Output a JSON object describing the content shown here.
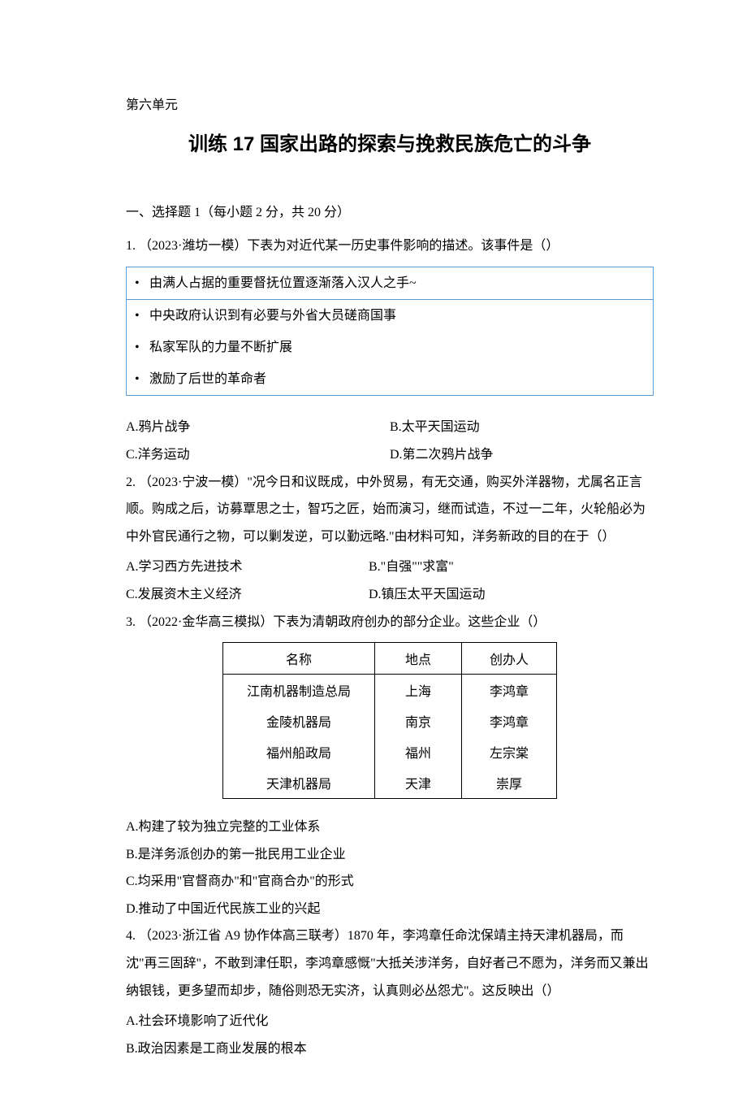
{
  "unit_label": "第六单元",
  "main_title": "训练 17 国家出路的探索与挽救民族危亡的斗争",
  "section1_title": "一、选择题 1（每小题 2 分，共 20 分）",
  "q1": {
    "num": "1.",
    "text": "（2023·潍坊一模）下表为对近代某一历史事件影响的描述。该事件是（）",
    "box_items": [
      "由满人占据的重要督抚位置逐渐落入汉人之手~",
      "中央政府认识到有必要与外省大员磋商国事",
      "私家军队的力量不断扩展",
      "激励了后世的革命者"
    ],
    "optA": "A.鸦片战争",
    "optB": "B.太平天国运动",
    "optC": "C.洋务运动",
    "optD": "D.第二次鸦片战争"
  },
  "q2": {
    "num": "2.",
    "text": "（2023·宁波一模）\"况今日和议既成，中外贸易，有无交通，购买外洋器物，尤属名正言顺。购成之后，访募覃思之士，智巧之匠，始而演习，继而试造，不过一二年，火轮船必为中外官民通行之物，可以剿发逆，可以勤远略.\"由材料可知，洋务新政的目的在于（）",
    "optA": "A.学习西方先进技术",
    "optB": "B.\"自强\"\"求富\"",
    "optC": "C.发展资木主义经济",
    "optD": "D.镇压太平天国运动"
  },
  "q3": {
    "num": "3.",
    "text": "（2022·金华高三模拟）下表为清朝政府创办的部分企业。这些企业（）",
    "table": {
      "headers": [
        "名称",
        "地点",
        "创办人"
      ],
      "rows": [
        [
          "江南机器制造总局",
          "上海",
          "李鸿章"
        ],
        [
          "金陵机器局",
          "南京",
          "李鸿章"
        ],
        [
          "福州船政局",
          "福州",
          "左宗棠"
        ],
        [
          "天津机器局",
          "天津",
          "崇厚"
        ]
      ]
    },
    "optA": "A.构建了较为独立完整的工业体系",
    "optB": "B.是洋务派创办的第一批民用工业企业",
    "optC": "C.均采用\"官督商办\"和\"官商合办\"的形式",
    "optD": "D.推动了中国近代民族工业的兴起"
  },
  "q4": {
    "num": "4.",
    "text": "（2023·浙江省 A9 协作体高三联考）1870 年，李鸿章任命沈保靖主持天津机器局，而沈\"再三固辞\"，不敢到津任职，李鸿章感慨\"大抵关涉洋务，自好者己不愿为，洋务而又兼出纳银钱，更多望而却步，随俗则恐无实济，认真则必丛怨尤\"。这反映出（）",
    "optA": "A.社会环境影响了近代化",
    "optB": "B.政治因素是工商业发展的根本"
  },
  "colors": {
    "text": "#000000",
    "background": "#ffffff",
    "box_border": "#5b9bd5",
    "table_border": "#000000"
  },
  "typography": {
    "body_font": "SimSun",
    "title_font": "Microsoft YaHei",
    "body_size_pt": 12,
    "title_size_pt": 18,
    "line_height": 2.1
  }
}
